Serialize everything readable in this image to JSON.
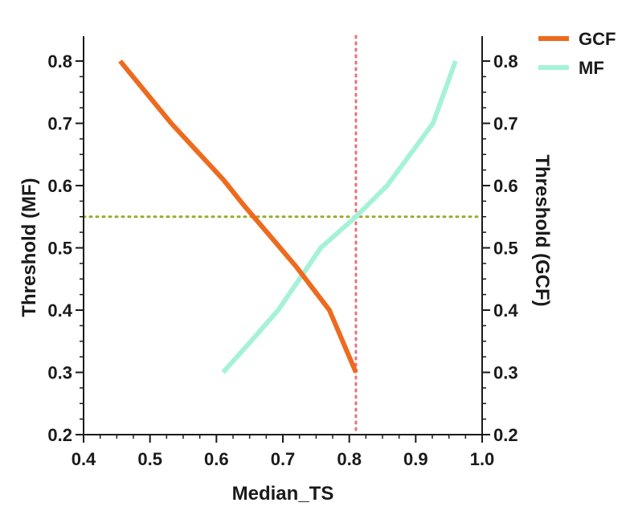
{
  "chart_data": {
    "type": "line",
    "xlabel": "Median_TS",
    "ylabel_left": "Threshold (MF)",
    "ylabel_right": "Threshold (GCF)",
    "xlim": [
      0.4,
      1.0
    ],
    "ylim": [
      0.2,
      0.85
    ],
    "x_ticks": [
      "0.4",
      "0.5",
      "0.6",
      "0.7",
      "0.8",
      "0.9",
      "1.0"
    ],
    "y_ticks": [
      "0.2",
      "0.3",
      "0.4",
      "0.5",
      "0.6",
      "0.7",
      "0.8"
    ],
    "legend_position": "top-right",
    "grid": false,
    "series": [
      {
        "name": "GCF",
        "color": "#ee6a1e",
        "points": [
          {
            "x": 0.455,
            "y": 0.8
          },
          {
            "x": 0.532,
            "y": 0.7
          },
          {
            "x": 0.61,
            "y": 0.61
          },
          {
            "x": 0.64,
            "y": 0.57
          },
          {
            "x": 0.68,
            "y": 0.52
          },
          {
            "x": 0.72,
            "y": 0.47
          },
          {
            "x": 0.77,
            "y": 0.4
          },
          {
            "x": 0.81,
            "y": 0.3
          }
        ]
      },
      {
        "name": "MF",
        "color": "#a6f2d9",
        "points": [
          {
            "x": 0.61,
            "y": 0.3
          },
          {
            "x": 0.652,
            "y": 0.35
          },
          {
            "x": 0.693,
            "y": 0.4
          },
          {
            "x": 0.757,
            "y": 0.5
          },
          {
            "x": 0.81,
            "y": 0.55
          },
          {
            "x": 0.857,
            "y": 0.6
          },
          {
            "x": 0.926,
            "y": 0.7
          },
          {
            "x": 0.96,
            "y": 0.8
          }
        ]
      }
    ],
    "reference_lines": [
      {
        "orientation": "vertical",
        "value": 0.81,
        "color": "#e8707a",
        "style": "dotted"
      },
      {
        "orientation": "horizontal",
        "value": 0.55,
        "color": "#9aaa2a",
        "style": "dotted"
      }
    ]
  }
}
